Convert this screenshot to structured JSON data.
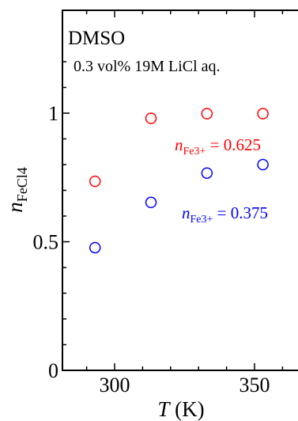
{
  "chart_data": {
    "type": "scatter",
    "title": "",
    "xlabel": "T (K)",
    "xlabel_parts": {
      "var": "T",
      "unit": " (K)"
    },
    "ylabel": "nFeCl4",
    "ylabel_parts": {
      "var": "n",
      "sub": "FeCl4"
    },
    "xlim": [
      280,
      360
    ],
    "ylim": [
      0,
      1.2
    ],
    "xticks": [
      300,
      350
    ],
    "xtick_labels": [
      "300",
      "350"
    ],
    "yticks": [
      0,
      0.5,
      1
    ],
    "ytick_labels": [
      "0",
      "0.5",
      "1"
    ],
    "grid": false,
    "annotations": {
      "solvent": "DMSO",
      "condition": "0.3 vol% 19M LiCl aq."
    },
    "series": [
      {
        "name": "nFe3+ = 0.625",
        "label_parts": {
          "var": "n",
          "sub": "Fe3+",
          "rest": " = 0.625"
        },
        "color": "#ff0000",
        "marker": "open-circle",
        "x": [
          293,
          313,
          333,
          353
        ],
        "y": [
          0.735,
          0.98,
          0.998,
          0.998
        ]
      },
      {
        "name": "nFe3+ = 0.375",
        "label_parts": {
          "var": "n",
          "sub": "Fe3+",
          "rest": " = 0.375"
        },
        "color": "#0000ff",
        "marker": "open-circle",
        "x": [
          293,
          313,
          333,
          353
        ],
        "y": [
          0.477,
          0.653,
          0.767,
          0.8
        ]
      }
    ]
  }
}
